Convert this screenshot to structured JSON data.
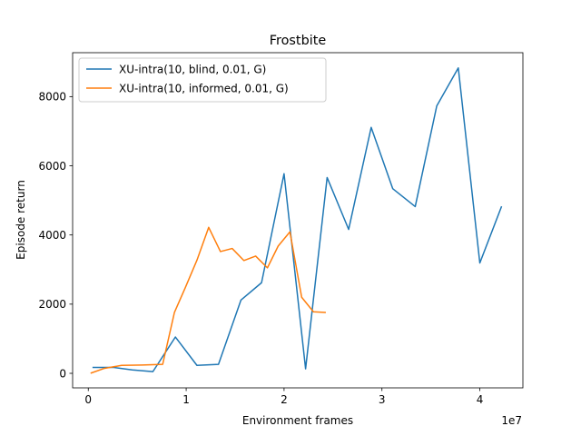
{
  "chart_data": {
    "type": "line",
    "title": "Frostbite",
    "xlabel": "Environment frames",
    "ylabel": "Episode return",
    "x_offset_label": "1e7",
    "xlim": [
      -1.6,
      44.4
    ],
    "ylim": [
      -420,
      9270
    ],
    "x_ticks": [
      0,
      10,
      20,
      30,
      40
    ],
    "x_tick_labels": [
      "0",
      "1",
      "2",
      "3",
      "4"
    ],
    "y_ticks": [
      0,
      2000,
      4000,
      6000,
      8000
    ],
    "y_tick_labels": [
      "0",
      "2000",
      "4000",
      "6000",
      "8000"
    ],
    "grid": false,
    "legend_position": "top-left",
    "series": [
      {
        "name": "XU-intra(10, blind, 0.01, G)",
        "color": "#1f77b4",
        "x": [
          0.5,
          2.6,
          4.5,
          6.6,
          8.9,
          11.1,
          13.3,
          15.6,
          17.7,
          20.0,
          22.2,
          24.4,
          26.6,
          28.9,
          31.1,
          33.4,
          35.6,
          37.8,
          40.0,
          42.2
        ],
        "y": [
          170,
          170,
          100,
          50,
          1050,
          230,
          260,
          2120,
          2620,
          5770,
          130,
          5660,
          4160,
          7110,
          5340,
          4820,
          7730,
          8830,
          3190,
          4810
        ]
      },
      {
        "name": "XU-intra(10, informed, 0.01, G)",
        "color": "#ff7f0e",
        "x": [
          0.3,
          1.6,
          3.4,
          5.5,
          7.6,
          8.8,
          9.9,
          11.1,
          12.3,
          13.5,
          14.7,
          15.9,
          17.1,
          18.3,
          19.4,
          20.6,
          21.8,
          23.0,
          24.2
        ],
        "y": [
          10,
          140,
          230,
          240,
          260,
          1760,
          2470,
          3270,
          4220,
          3520,
          3610,
          3260,
          3390,
          3050,
          3680,
          4090,
          2200,
          1780,
          1760
        ]
      }
    ]
  }
}
